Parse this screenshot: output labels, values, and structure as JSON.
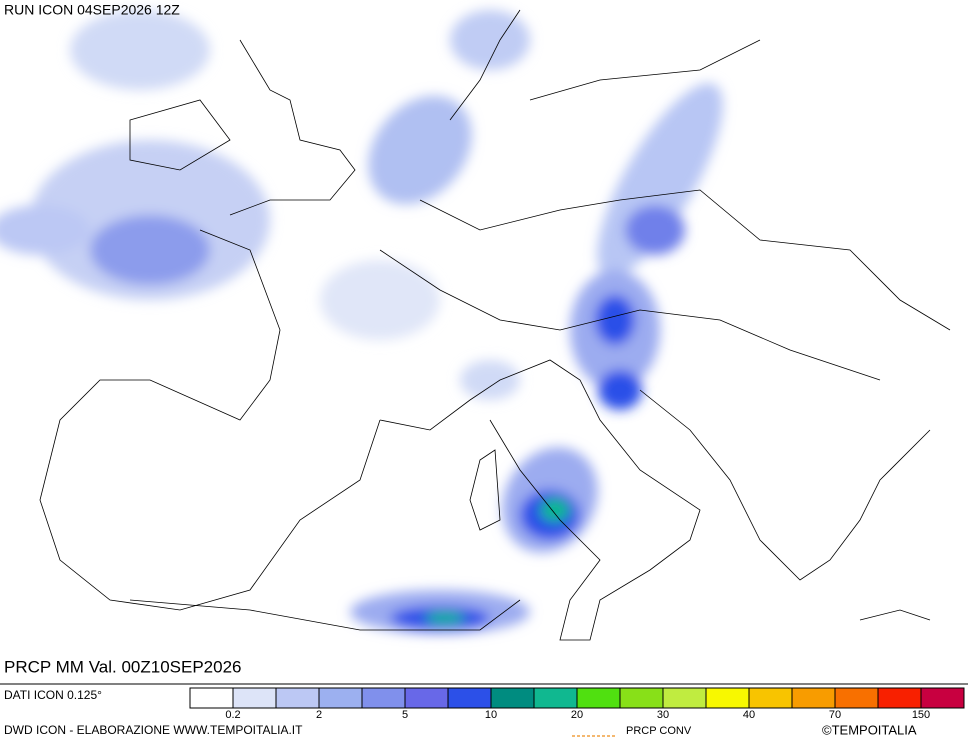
{
  "header": {
    "title": "RUN ICON 04SEP2026 12Z"
  },
  "map": {
    "caption": "PRCP MM Val. 00Z10SEP2026"
  },
  "footer": {
    "resolution": "DATI ICON 0.125°",
    "credit": "DWD ICON - ELABORAZIONE WWW.TEMPOITALIA.IT",
    "conv_legend": "PRCP CONV",
    "brand": "©TEMPOITALIA"
  },
  "colorbar": {
    "colors": [
      "#ffffff",
      "#dde4f8",
      "#bcc8f4",
      "#9cb0f0",
      "#8090ec",
      "#6868e8",
      "#2c50e8",
      "#008c80",
      "#10b890",
      "#50e010",
      "#88e018",
      "#c0ec40",
      "#f8f800",
      "#f8c400",
      "#f89c00",
      "#f87000",
      "#f82000",
      "#c80040"
    ],
    "ticks": [
      "0.2",
      "2",
      "5",
      "10",
      "20",
      "30",
      "40",
      "70",
      "150"
    ]
  }
}
